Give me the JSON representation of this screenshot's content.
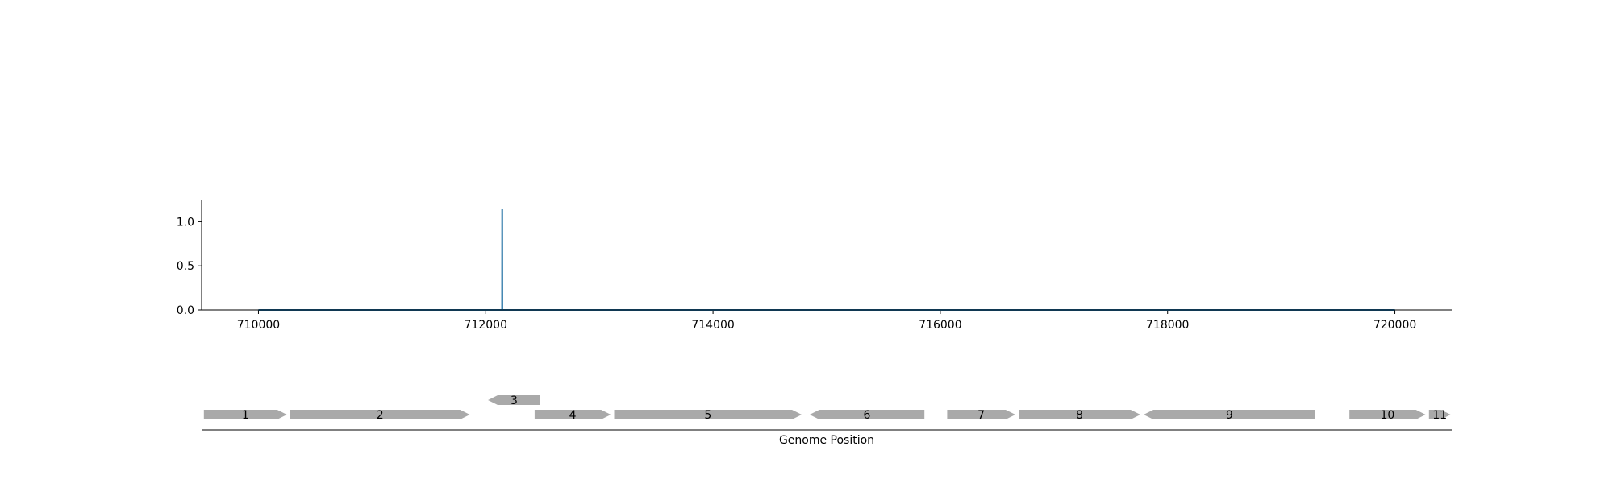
{
  "chart_data": [
    {
      "type": "line",
      "title": "",
      "xlabel": "",
      "ylabel": "",
      "xlim": [
        709500,
        720500
      ],
      "ylim": [
        0,
        1.25
      ],
      "x_ticks": [
        710000,
        712000,
        714000,
        716000,
        718000,
        720000
      ],
      "y_ticks": [
        0.0,
        0.5,
        1.0
      ],
      "grid": false,
      "legend": "none",
      "series": [
        {
          "color": "#1f6fa3",
          "points": [
            [
              710000,
              0
            ],
            [
              712144,
              0
            ],
            [
              712145,
              1.14
            ],
            [
              712146,
              0
            ],
            [
              720000,
              0
            ]
          ]
        }
      ]
    },
    {
      "type": "gene_map",
      "xlabel": "Genome Position",
      "xlim": [
        709500,
        720500
      ],
      "feature_color": "#a9a9a9",
      "features": [
        {
          "label": "1",
          "start": 709520,
          "end": 710250,
          "strand": 1,
          "track": 0
        },
        {
          "label": "2",
          "start": 710280,
          "end": 711860,
          "strand": 1,
          "track": 0
        },
        {
          "label": "3",
          "start": 712020,
          "end": 712480,
          "strand": -1,
          "track": 1
        },
        {
          "label": "4",
          "start": 712430,
          "end": 713100,
          "strand": 1,
          "track": 0
        },
        {
          "label": "5",
          "start": 713130,
          "end": 714780,
          "strand": 1,
          "track": 0
        },
        {
          "label": "6",
          "start": 714850,
          "end": 715860,
          "strand": -1,
          "track": 0
        },
        {
          "label": "7",
          "start": 716060,
          "end": 716660,
          "strand": 1,
          "track": 0
        },
        {
          "label": "8",
          "start": 716690,
          "end": 717760,
          "strand": 1,
          "track": 0
        },
        {
          "label": "9",
          "start": 717790,
          "end": 719300,
          "strand": -1,
          "track": 0
        },
        {
          "label": "10",
          "start": 719600,
          "end": 720270,
          "strand": 1,
          "track": 0
        },
        {
          "label": "11",
          "start": 720300,
          "end": 720490,
          "strand": 1,
          "track": 0
        }
      ]
    }
  ]
}
